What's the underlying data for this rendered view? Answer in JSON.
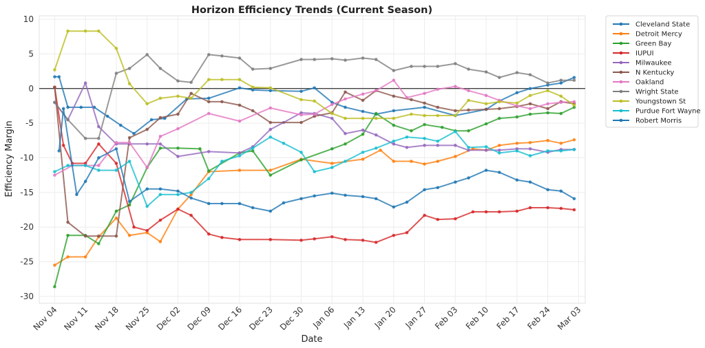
{
  "chart_data": {
    "type": "line",
    "title": "Horizon Efficiency Trends (Current Season)",
    "xlabel": "Date",
    "ylabel": "Efficiency Margin",
    "ylim": [
      -31,
      10.5
    ],
    "xlim": [
      -3.5,
      120.5
    ],
    "grid": true,
    "legend_position": "outside-right",
    "y_ticks": [
      -30,
      -25,
      -20,
      -15,
      -10,
      -5,
      0,
      5,
      10
    ],
    "x_ticks": [
      {
        "label": "Nov 04",
        "day": 0
      },
      {
        "label": "Nov 11",
        "day": 7
      },
      {
        "label": "Nov 18",
        "day": 14
      },
      {
        "label": "Nov 25",
        "day": 21
      },
      {
        "label": "Dec 02",
        "day": 28
      },
      {
        "label": "Dec 09",
        "day": 35
      },
      {
        "label": "Dec 16",
        "day": 42
      },
      {
        "label": "Dec 23",
        "day": 49
      },
      {
        "label": "Dec 30",
        "day": 56
      },
      {
        "label": "Jan 06",
        "day": 63
      },
      {
        "label": "Jan 13",
        "day": 70
      },
      {
        "label": "Jan 20",
        "day": 77
      },
      {
        "label": "Jan 27",
        "day": 84
      },
      {
        "label": "Feb 03",
        "day": 91
      },
      {
        "label": "Feb 10",
        "day": 98
      },
      {
        "label": "Feb 17",
        "day": 105
      },
      {
        "label": "Feb 24",
        "day": 112
      },
      {
        "label": "Mar 03",
        "day": 119
      }
    ],
    "x_unit": "days since Nov 04",
    "reference_line_y": 0,
    "series": [
      {
        "name": "Cleveland State",
        "color": "#1f77b4",
        "x": [
          0,
          1,
          3,
          6,
          9,
          12,
          15,
          18,
          22,
          25,
          30,
          35,
          42,
          45,
          49,
          56,
          59,
          63,
          66,
          70,
          73,
          77,
          84,
          91,
          98,
          101,
          105,
          108,
          112,
          115,
          118
        ],
        "y": [
          1.7,
          1.7,
          -2.7,
          -2.7,
          -2.7,
          -4,
          -5.3,
          -6.5,
          -4.5,
          -4.3,
          -1.5,
          -1.4,
          0.1,
          -0.2,
          -0.3,
          -0.4,
          0.1,
          -2,
          -2.7,
          -3.3,
          -3.7,
          -3.2,
          -2.7,
          -3.9,
          -3,
          -1.8,
          -0.6,
          0,
          0.5,
          0.8,
          1.6
        ]
      },
      {
        "name": "Detroit Mercy",
        "color": "#ff7f0e",
        "x": [
          0,
          3,
          7,
          10,
          14,
          17,
          21,
          24,
          28,
          31,
          35,
          42,
          49,
          56,
          63,
          70,
          74,
          77,
          81,
          84,
          87,
          91,
          95,
          98,
          101,
          105,
          108,
          112,
          115,
          118
        ],
        "y": [
          -25.5,
          -24.3,
          -24.3,
          -21.4,
          -18.7,
          -21.2,
          -20.8,
          -22.1,
          -17.4,
          -15.3,
          -12,
          -11.8,
          -11.8,
          -10.2,
          -10.8,
          -10.2,
          -8.9,
          -10.5,
          -10.5,
          -10.9,
          -10.5,
          -9.8,
          -8.7,
          -8.9,
          -8.2,
          -7.9,
          -7.8,
          -7.5,
          -7.9,
          -7.4
        ]
      },
      {
        "name": "Green Bay",
        "color": "#2ca02c",
        "x": [
          0,
          3,
          7,
          10,
          14,
          17,
          21,
          24,
          28,
          33,
          35,
          42,
          45,
          49,
          56,
          63,
          66,
          70,
          73,
          77,
          81,
          84,
          88,
          91,
          94,
          98,
          101,
          105,
          108,
          112,
          115,
          118
        ],
        "y": [
          -28.6,
          -21.2,
          -21.2,
          -22.4,
          -17.7,
          -16.8,
          -11.4,
          -8.6,
          -8.6,
          -8.7,
          -11.9,
          -9.3,
          -9,
          -12.5,
          -10.3,
          -8.7,
          -8,
          -6.6,
          -3.6,
          -5.3,
          -6.1,
          -5.2,
          -5.6,
          -6.1,
          -6.1,
          -5.1,
          -4.3,
          -4.1,
          -3.7,
          -3.5,
          -3.6,
          -2.7
        ]
      },
      {
        "name": "IUPUI",
        "color": "#d62728",
        "x": [
          0,
          2,
          4,
          7,
          10,
          14,
          18,
          21,
          24,
          28,
          31,
          35,
          38,
          42,
          49,
          56,
          59,
          63,
          66,
          70,
          73,
          77,
          80,
          84,
          87,
          91,
          95,
          98,
          101,
          105,
          108,
          112,
          115,
          118
        ],
        "y": [
          0.2,
          -8.2,
          -10.8,
          -10.8,
          -8,
          -10.8,
          -20,
          -20.5,
          -19,
          -17.4,
          -18.3,
          -21,
          -21.5,
          -21.8,
          -21.8,
          -21.9,
          -21.7,
          -21.4,
          -21.8,
          -21.9,
          -22.2,
          -21.2,
          -20.8,
          -18.3,
          -18.9,
          -18.8,
          -17.8,
          -17.8,
          -17.8,
          -17.7,
          -17.2,
          -17.2,
          -17.3,
          -17.5
        ]
      },
      {
        "name": "Milwaukee",
        "color": "#9467bd",
        "x": [
          0,
          3,
          7,
          10,
          14,
          17,
          21,
          24,
          28,
          35,
          42,
          45,
          49,
          52,
          56,
          59,
          63,
          66,
          70,
          73,
          77,
          80,
          84,
          87,
          91,
          94,
          98,
          101,
          105,
          108,
          112,
          115,
          118
        ],
        "y": [
          -2,
          -4.5,
          0.8,
          -5.5,
          -8,
          -8,
          -8,
          -8,
          -9.8,
          -9.1,
          -9.3,
          -8.4,
          -5.9,
          -4.9,
          -3.5,
          -3.6,
          -4.3,
          -6.5,
          -6,
          -6.7,
          -8,
          -8.5,
          -8.2,
          -8.2,
          -8.2,
          -8.9,
          -8.9,
          -8.9,
          -8.7,
          -8.7,
          -9.2,
          -8.8,
          -8.8
        ]
      },
      {
        "name": "N Kentucky",
        "color": "#8c564b",
        "x": [
          0,
          3,
          7,
          10,
          14,
          17,
          21,
          24,
          28,
          31,
          35,
          38,
          42,
          45,
          49,
          56,
          59,
          63,
          66,
          70,
          73,
          77,
          81,
          84,
          87,
          91,
          94,
          98,
          101,
          105,
          108,
          112,
          115,
          118
        ],
        "y": [
          0.2,
          -19.3,
          -21.3,
          -21.3,
          -21.3,
          -7.1,
          -5.9,
          -4.2,
          -3.7,
          -0.7,
          -1.9,
          -1.9,
          -2.4,
          -3.2,
          -4.9,
          -4.9,
          -4,
          -3.5,
          -0.5,
          -1.7,
          -0.3,
          -1.1,
          -1.6,
          -2.1,
          -2.7,
          -3.2,
          -3.1,
          -3,
          -2.9,
          -2.6,
          -2.2,
          -2.9,
          -1.9,
          -2.2
        ]
      },
      {
        "name": "Oakland",
        "color": "#e377c2",
        "x": [
          0,
          4,
          7,
          10,
          14,
          17,
          21,
          24,
          28,
          35,
          42,
          49,
          56,
          59,
          63,
          66,
          70,
          73,
          77,
          80,
          84,
          87,
          91,
          94,
          98,
          101,
          105,
          108,
          112,
          115,
          118
        ],
        "y": [
          -12.5,
          -11.1,
          -11.1,
          -11.1,
          -7.8,
          -7.8,
          -11.4,
          -6.9,
          -5.8,
          -3.6,
          -4.7,
          -2.8,
          -3.8,
          -3.7,
          -2.3,
          -1.5,
          -0.8,
          -0.3,
          1.2,
          -1.3,
          -0.7,
          -0.1,
          0.3,
          -0.3,
          -1,
          -1.7,
          -2.5,
          -2.9,
          -2.2,
          -2,
          -1.9
        ]
      },
      {
        "name": "Wright State",
        "color": "#7f7f7f",
        "x": [
          0,
          3,
          7,
          10,
          14,
          17,
          21,
          24,
          28,
          31,
          35,
          38,
          42,
          45,
          49,
          56,
          59,
          63,
          66,
          70,
          73,
          77,
          81,
          84,
          87,
          91,
          94,
          98,
          101,
          105,
          108,
          112,
          115,
          118
        ],
        "y": [
          -2,
          -4.5,
          -7.2,
          -7.2,
          2.2,
          2.9,
          4.9,
          2.9,
          1.1,
          0.9,
          4.9,
          4.7,
          4.4,
          2.8,
          2.9,
          4.2,
          4.2,
          4.3,
          4.1,
          4.4,
          4.2,
          2.6,
          3.2,
          3.2,
          3.2,
          3.6,
          2.8,
          2.4,
          1.6,
          2.3,
          2,
          0.8,
          1.2,
          1.2
        ]
      },
      {
        "name": "Youngstown St",
        "color": "#bcbd22",
        "x": [
          0,
          3,
          7,
          10,
          14,
          17,
          21,
          24,
          28,
          31,
          35,
          38,
          42,
          45,
          49,
          56,
          59,
          63,
          66,
          70,
          73,
          77,
          81,
          84,
          87,
          91,
          94,
          98,
          101,
          105,
          108,
          112,
          115,
          118
        ],
        "y": [
          2.7,
          8.3,
          8.3,
          8.3,
          5.8,
          0.7,
          -2.2,
          -1.4,
          -1.1,
          -1.4,
          1.3,
          1.3,
          1.3,
          0.2,
          0.1,
          -1.6,
          -1.8,
          -3.6,
          -4.3,
          -4.3,
          -4.3,
          -4.3,
          -3.7,
          -3.9,
          -3.9,
          -3.9,
          -1.7,
          -2.2,
          -1.9,
          -2.1,
          -1,
          -0.3,
          -1.1,
          -2.4
        ]
      },
      {
        "name": "Purdue Fort Wayne",
        "color": "#17becf",
        "x": [
          0,
          3,
          7,
          10,
          14,
          17,
          21,
          24,
          28,
          31,
          35,
          38,
          42,
          45,
          49,
          52,
          56,
          59,
          63,
          66,
          70,
          73,
          77,
          80,
          84,
          87,
          91,
          94,
          98,
          101,
          105,
          108,
          112,
          115,
          118
        ],
        "y": [
          -12,
          -11.1,
          -11.1,
          -11.8,
          -11.8,
          -10.5,
          -17,
          -15.3,
          -15.3,
          -15,
          -13,
          -10.5,
          -9.7,
          -8.6,
          -7,
          -7.9,
          -9.2,
          -12,
          -11.4,
          -10.5,
          -9.2,
          -8.6,
          -7.6,
          -7,
          -7.2,
          -7.6,
          -6.2,
          -8.5,
          -8.4,
          -9.3,
          -9,
          -9.7,
          -9,
          -9,
          -8.8
        ]
      },
      {
        "name": "Robert Morris",
        "color": "#1f77b4",
        "x": [
          1,
          2,
          5,
          7,
          10,
          14,
          17,
          21,
          24,
          28,
          31,
          35,
          38,
          42,
          45,
          49,
          52,
          56,
          59,
          63,
          66,
          70,
          73,
          77,
          80,
          84,
          87,
          91,
          94,
          98,
          101,
          105,
          108,
          112,
          115,
          118
        ],
        "y": [
          -9,
          -2.9,
          -15.3,
          -13.4,
          -10,
          -8.7,
          -16.3,
          -14.5,
          -14.5,
          -14.8,
          -15.8,
          -16.6,
          -16.6,
          -16.6,
          -17.2,
          -17.7,
          -16.5,
          -15.9,
          -15.5,
          -15.1,
          -15.4,
          -15.6,
          -15.9,
          -17.1,
          -16.4,
          -14.6,
          -14.3,
          -13.5,
          -12.9,
          -11.8,
          -12.1,
          -13.2,
          -13.5,
          -14.6,
          -14.8,
          -15.9
        ]
      }
    ]
  }
}
